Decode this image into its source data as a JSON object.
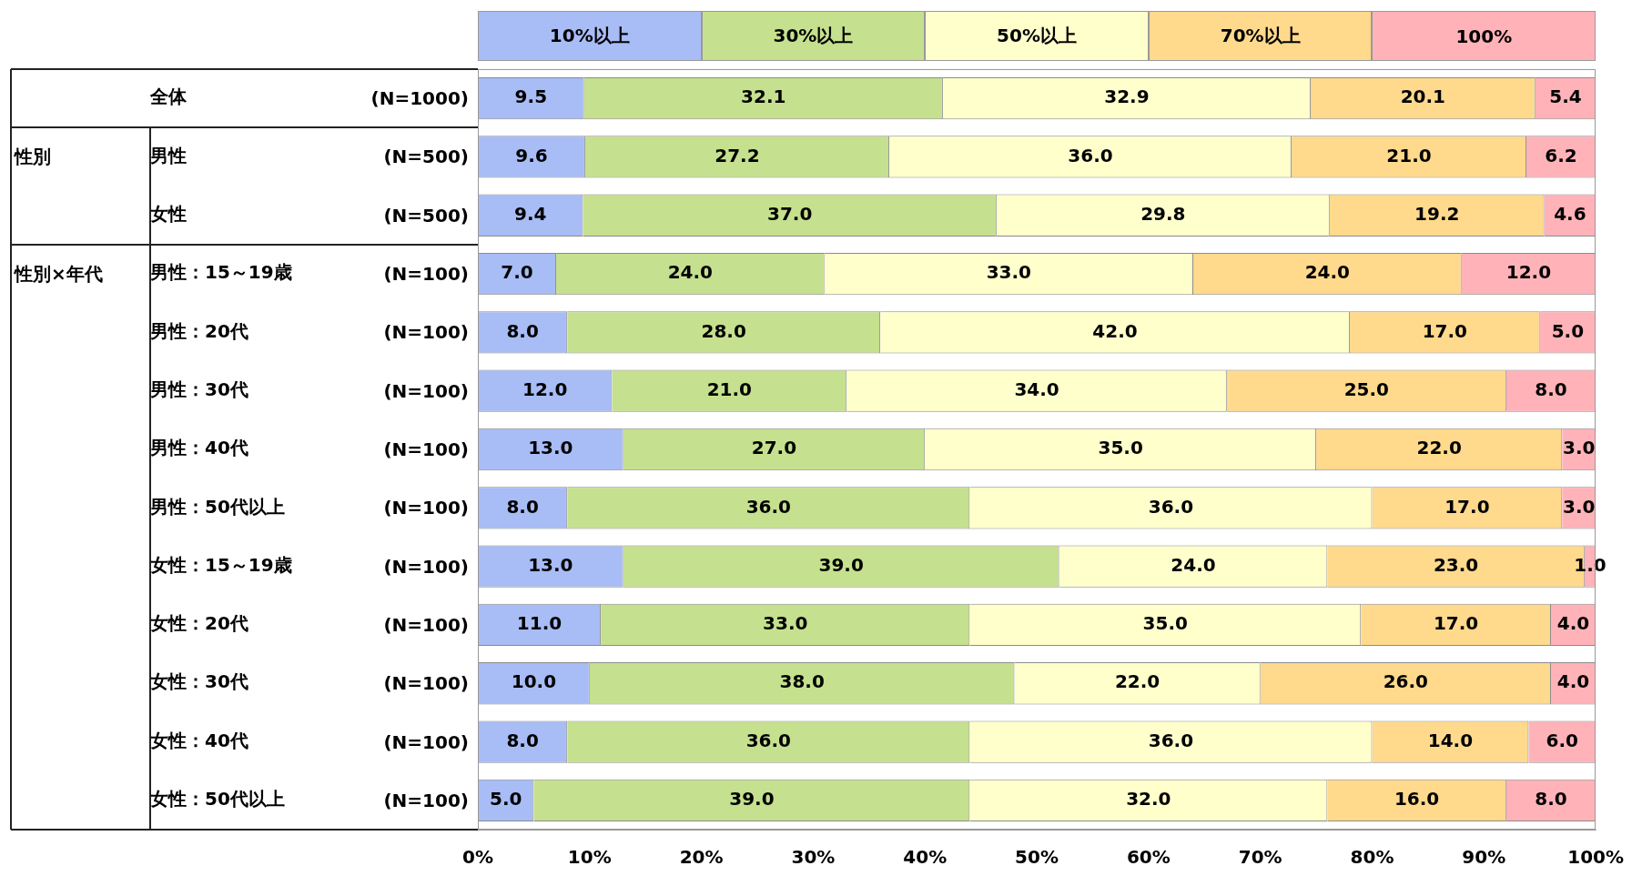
{
  "chart_data": {
    "type": "bar",
    "orientation": "horizontal",
    "stacked": true,
    "legend": "top",
    "categories": [
      "全体",
      "男性",
      "女性",
      "男性：15～19歳",
      "男性：20代",
      "男性：30代",
      "男性：40代",
      "男性：50代以上",
      "女性：15～19歳",
      "女性：20代",
      "女性：30代",
      "女性：40代",
      "女性：50代以上"
    ],
    "series": [
      {
        "name": "10%以上",
        "color": "#a8bcf5",
        "values": [
          9.5,
          9.6,
          9.4,
          7,
          8,
          12,
          13,
          8,
          13,
          11,
          10,
          8,
          5
        ],
        "value_labels": [
          "9.5",
          "9.6",
          "9.4",
          "7.0",
          "8.0",
          "12.0",
          "13.0",
          "8.0",
          "13.0",
          "11.0",
          "10.0",
          "8.0",
          "5.0"
        ]
      },
      {
        "name": "30%以上",
        "color": "#c5e08e",
        "values": [
          32.1,
          27.2,
          37,
          24,
          28,
          21,
          27,
          36,
          39,
          33,
          38,
          36,
          39
        ],
        "value_labels": [
          "32.1",
          "27.2",
          "37.0",
          "24.0",
          "28.0",
          "21.0",
          "27.0",
          "36.0",
          "39.0",
          "33.0",
          "38.0",
          "36.0",
          "39.0"
        ]
      },
      {
        "name": "50%以上",
        "color": "#ffffcc",
        "values": [
          32.9,
          36,
          29.8,
          33,
          42,
          34,
          35,
          36,
          24,
          35,
          22,
          36,
          32
        ],
        "value_labels": [
          "32.9",
          "36.0",
          "29.8",
          "33.0",
          "42.0",
          "34.0",
          "35.0",
          "36.0",
          "24.0",
          "35.0",
          "22.0",
          "36.0",
          "32.0"
        ]
      },
      {
        "name": "70%以上",
        "color": "#ffd98c",
        "values": [
          20.1,
          21,
          19.2,
          24,
          17,
          25,
          22,
          17,
          23,
          17,
          26,
          14,
          16
        ],
        "value_labels": [
          "20.1",
          "21.0",
          "19.2",
          "24.0",
          "17.0",
          "25.0",
          "22.0",
          "17.0",
          "23.0",
          "17.0",
          "26.0",
          "14.0",
          "16.0"
        ]
      },
      {
        "name": "100%",
        "color": "#ffb3b8",
        "values": [
          5.4,
          6.2,
          4.6,
          12,
          5,
          8,
          3,
          3,
          1,
          4,
          4,
          6,
          8
        ],
        "value_labels": [
          "5.4",
          "6.2",
          "4.6",
          "12.0",
          "5.0",
          "8.0",
          "3.0",
          "3.0",
          "1.0",
          "4.0",
          "4.0",
          "6.0",
          "8.0"
        ]
      }
    ],
    "xlim": [
      0,
      100
    ],
    "xticks": [
      {
        "value": 0,
        "label": "0%"
      },
      {
        "value": 10,
        "label": "10%"
      },
      {
        "value": 20,
        "label": "20%"
      },
      {
        "value": 30,
        "label": "30%"
      },
      {
        "value": 40,
        "label": "40%"
      },
      {
        "value": 50,
        "label": "50%"
      },
      {
        "value": 60,
        "label": "60%"
      },
      {
        "value": 70,
        "label": "70%"
      },
      {
        "value": 80,
        "label": "80%"
      },
      {
        "value": 90,
        "label": "90%"
      },
      {
        "value": 100,
        "label": "100%"
      }
    ],
    "annotations": [
      "性別",
      "性別×年代",
      "(N=1000)",
      "(N=500)",
      "(N=500)",
      "(N=100)",
      "(N=100)",
      "(N=100)",
      "(N=100)",
      "(N=100)",
      "(N=100)",
      "(N=100)",
      "(N=100)",
      "(N=100)",
      "(N=100)"
    ]
  }
}
